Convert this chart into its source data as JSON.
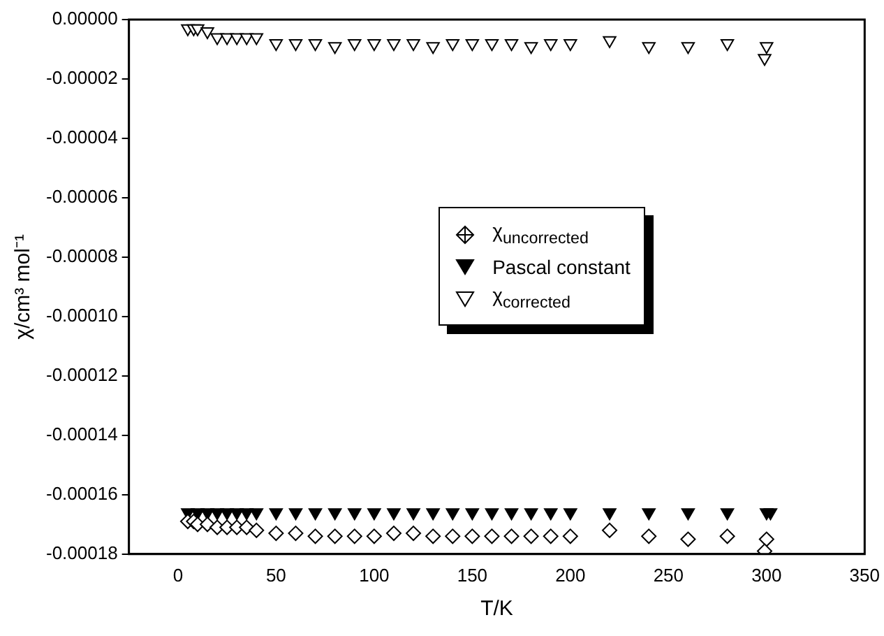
{
  "chart_data": {
    "type": "scatter",
    "xlabel": "T/K",
    "ylabel": "χ/cm³ mol⁻¹",
    "xlim": [
      -25,
      350
    ],
    "xticks": [
      0,
      50,
      100,
      150,
      200,
      250,
      300,
      350
    ],
    "ylim": [
      -0.00018,
      0
    ],
    "yticks": [
      {
        "value": 0,
        "label": "0.00000"
      },
      {
        "value": -2e-05,
        "label": "-0.00002"
      },
      {
        "value": -4e-05,
        "label": "-0.00004"
      },
      {
        "value": -6e-05,
        "label": "-0.00006"
      },
      {
        "value": -8e-05,
        "label": "-0.00008"
      },
      {
        "value": -0.0001,
        "label": "-0.00010"
      },
      {
        "value": -0.00012,
        "label": "-0.00012"
      },
      {
        "value": -0.00014,
        "label": "-0.00014"
      },
      {
        "value": -0.00016,
        "label": "-0.00016"
      },
      {
        "value": -0.00018,
        "label": "-0.00018"
      }
    ],
    "grid": false,
    "legend": "right",
    "series": [
      {
        "name": "χ$_{uncorrected}$",
        "color": "#000000",
        "marker": "diamond",
        "x": [
          5,
          8,
          10,
          15,
          20,
          25,
          30,
          35,
          40,
          50,
          60,
          70,
          80,
          90,
          100,
          110,
          120,
          130,
          140,
          150,
          160,
          170,
          180,
          190,
          200,
          220,
          240,
          260,
          280,
          300,
          299
        ],
        "values": [
          -0.000169,
          -0.000169,
          -0.00017,
          -0.00017,
          -0.000171,
          -0.000171,
          -0.000171,
          -0.000171,
          -0.000172,
          -0.000173,
          -0.000173,
          -0.000174,
          -0.000174,
          -0.000174,
          -0.000174,
          -0.000173,
          -0.000173,
          -0.000174,
          -0.000174,
          -0.000174,
          -0.000174,
          -0.000174,
          -0.000174,
          -0.000174,
          -0.000174,
          -0.000172,
          -0.000174,
          -0.000175,
          -0.000174,
          -0.000175,
          -0.000179
        ]
      },
      {
        "name": "Pascal constant",
        "color": "#000000",
        "marker": "triangle",
        "x": [
          5,
          10,
          15,
          20,
          25,
          30,
          35,
          40,
          50,
          60,
          70,
          80,
          90,
          100,
          110,
          120,
          130,
          140,
          150,
          160,
          170,
          180,
          190,
          200,
          220,
          240,
          260,
          280,
          300,
          302
        ],
        "values": [
          -0.000166,
          -0.000166,
          -0.000166,
          -0.000166,
          -0.000166,
          -0.000166,
          -0.000166,
          -0.000166,
          -0.000166,
          -0.000166,
          -0.000166,
          -0.000166,
          -0.000166,
          -0.000166,
          -0.000166,
          -0.000166,
          -0.000166,
          -0.000166,
          -0.000166,
          -0.000166,
          -0.000166,
          -0.000166,
          -0.000166,
          -0.000166,
          -0.000166,
          -0.000166,
          -0.000166,
          -0.000166,
          -0.000166,
          -0.000166
        ]
      },
      {
        "name": "χ$_{corrected}$",
        "color": "#000000",
        "marker": "triangle",
        "x": [
          5,
          8,
          10,
          15,
          20,
          25,
          30,
          35,
          40,
          50,
          60,
          70,
          80,
          90,
          100,
          110,
          120,
          130,
          140,
          150,
          160,
          170,
          180,
          190,
          200,
          220,
          240,
          260,
          280,
          300,
          299
        ],
        "values": [
          -3e-06,
          -3e-06,
          -3e-06,
          -4e-06,
          -6e-06,
          -6e-06,
          -6e-06,
          -6e-06,
          -6e-06,
          -8e-06,
          -8e-06,
          -8e-06,
          -9e-06,
          -8e-06,
          -8e-06,
          -8e-06,
          -8e-06,
          -9e-06,
          -8e-06,
          -8e-06,
          -8e-06,
          -8e-06,
          -9e-06,
          -8e-06,
          -8e-06,
          -7e-06,
          -9e-06,
          -9e-06,
          -8e-06,
          -9e-06,
          -1.3e-05
        ]
      }
    ]
  }
}
